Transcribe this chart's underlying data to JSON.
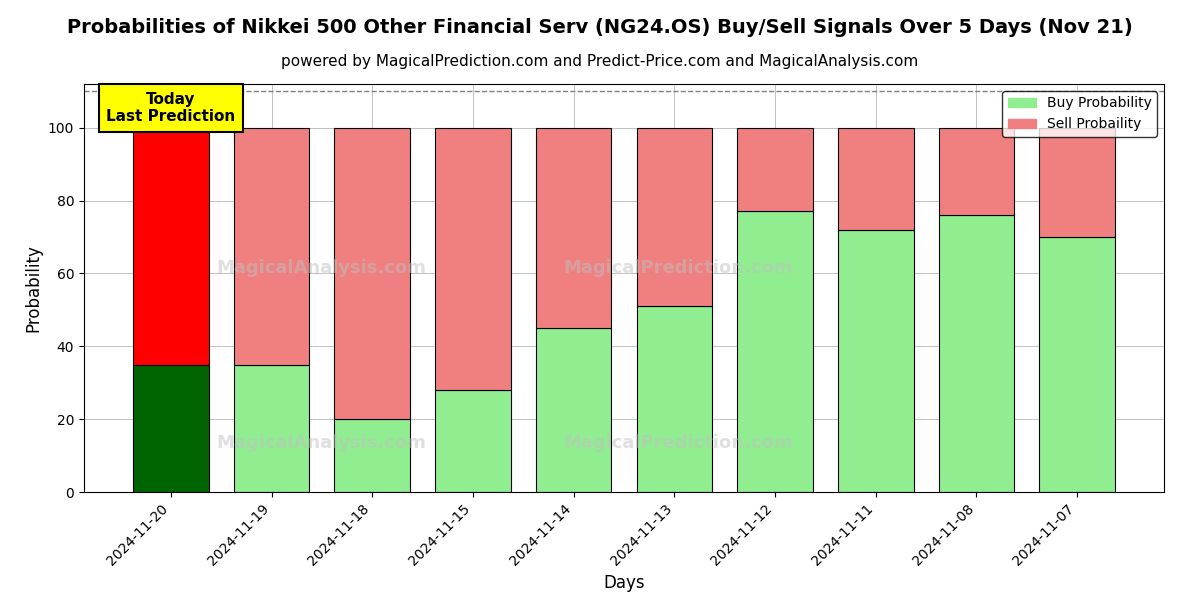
{
  "title": "Probabilities of Nikkei 500 Other Financial Serv (NG24.OS) Buy/Sell Signals Over 5 Days (Nov 21)",
  "subtitle": "powered by MagicalPrediction.com and Predict-Price.com and MagicalAnalysis.com",
  "xlabel": "Days",
  "ylabel": "Probability",
  "categories": [
    "2024-11-20",
    "2024-11-19",
    "2024-11-18",
    "2024-11-15",
    "2024-11-14",
    "2024-11-13",
    "2024-11-12",
    "2024-11-11",
    "2024-11-08",
    "2024-11-07"
  ],
  "buy_values": [
    35,
    35,
    20,
    28,
    45,
    51,
    77,
    72,
    76,
    70
  ],
  "sell_values": [
    65,
    65,
    80,
    72,
    55,
    49,
    23,
    28,
    24,
    30
  ],
  "buy_color_today": "#006400",
  "sell_color_today": "#FF0000",
  "buy_color_rest": "#90EE90",
  "sell_color_rest": "#F08080",
  "bar_edge_color": "black",
  "bar_edge_width": 0.8,
  "today_annotation_text": "Today\nLast Prediction",
  "today_annotation_bg": "#FFFF00",
  "today_annotation_fontsize": 11,
  "legend_buy": "Buy Probability",
  "legend_sell": "Sell Probaility",
  "ylim": [
    0,
    112
  ],
  "dashed_line_y": 110,
  "dashed_line_color": "#808080",
  "grid_color": "#AAAAAA",
  "background_color": "#FFFFFF",
  "title_fontsize": 14,
  "subtitle_fontsize": 11,
  "axis_label_fontsize": 12,
  "tick_fontsize": 10,
  "bar_width": 0.75
}
